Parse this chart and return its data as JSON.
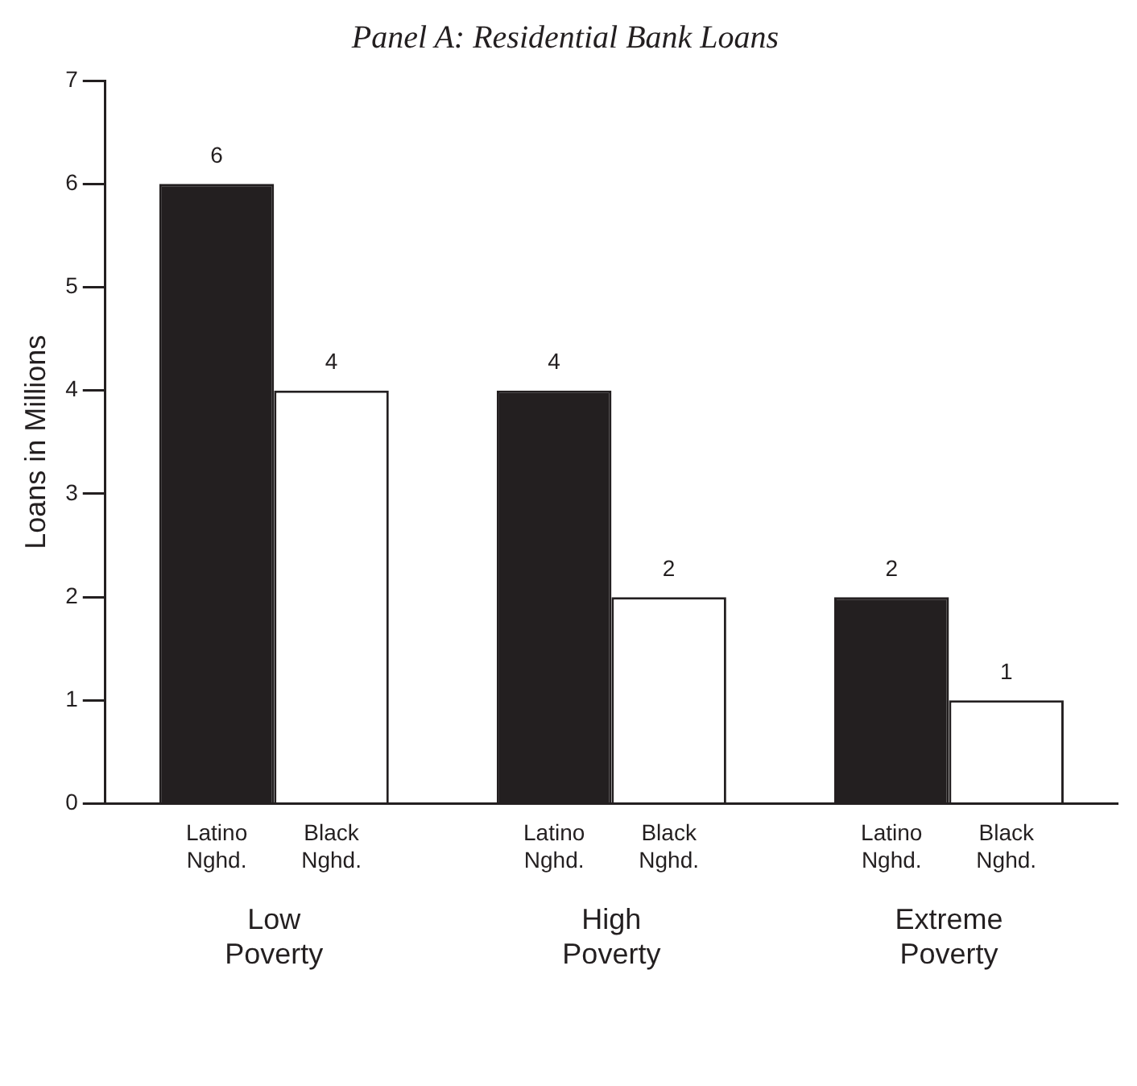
{
  "chart_data": {
    "type": "bar",
    "title": "Panel A: Residential Bank Loans",
    "ylabel": "Loans in Millions",
    "categories": [
      "Low Poverty",
      "High Poverty",
      "Extreme Poverty"
    ],
    "series": [
      {
        "name": "Latino Nghd.",
        "color": "#231f20",
        "values": [
          6,
          4,
          2
        ]
      },
      {
        "name": "Black Nghd.",
        "color": "#ffffff",
        "values": [
          4,
          2,
          1
        ]
      }
    ],
    "ylim": [
      0,
      7
    ],
    "yticks": [
      0,
      1,
      2,
      3,
      4,
      5,
      6,
      7
    ],
    "grid": false,
    "legend": false,
    "data_labels": true
  }
}
